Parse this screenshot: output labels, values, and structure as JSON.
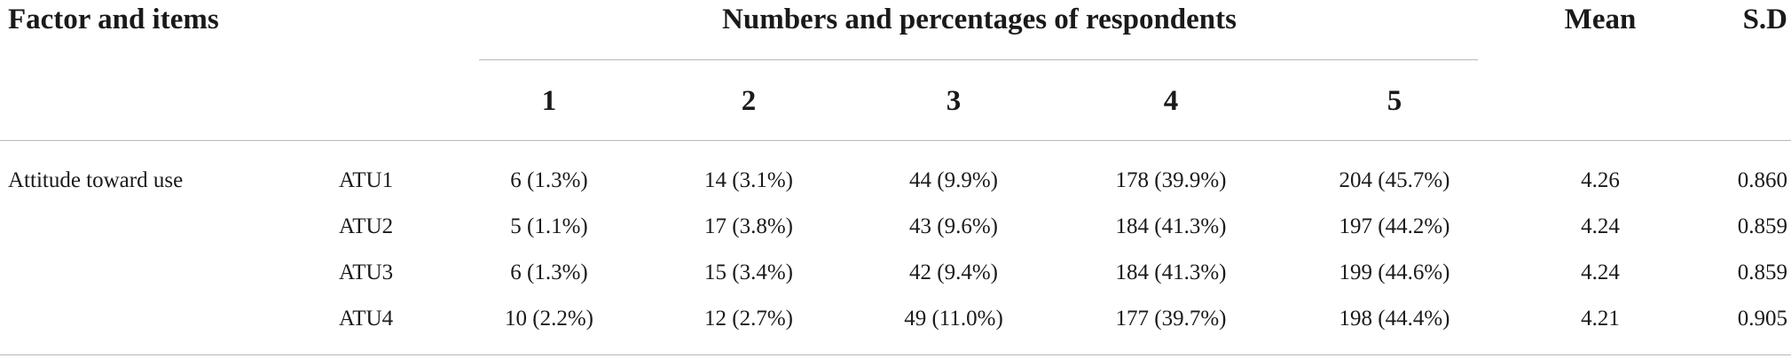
{
  "table": {
    "headers": {
      "factor_items": "Factor and items",
      "group": "Numbers and percentages of respondents",
      "mean": "Mean",
      "sd": "S.D",
      "scale": [
        "1",
        "2",
        "3",
        "4",
        "5"
      ]
    },
    "factor": "Attitude toward use",
    "rows": [
      {
        "item": "ATU1",
        "counts": [
          "6 (1.3%)",
          "14 (3.1%)",
          "44 (9.9%)",
          "178 (39.9%)",
          "204 (45.7%)"
        ],
        "mean": "4.26",
        "sd": "0.860"
      },
      {
        "item": "ATU2",
        "counts": [
          "5 (1.1%)",
          "17 (3.8%)",
          "43 (9.6%)",
          "184 (41.3%)",
          "197 (44.2%)"
        ],
        "mean": "4.24",
        "sd": "0.859"
      },
      {
        "item": "ATU3",
        "counts": [
          "6 (1.3%)",
          "15 (3.4%)",
          "42 (9.4%)",
          "184 (41.3%)",
          "199 (44.6%)"
        ],
        "mean": "4.24",
        "sd": "0.859"
      },
      {
        "item": "ATU4",
        "counts": [
          "10 (2.2%)",
          "12 (2.7%)",
          "49 (11.0%)",
          "177 (39.7%)",
          "198 (44.4%)"
        ],
        "mean": "4.21",
        "sd": "0.905"
      }
    ]
  }
}
